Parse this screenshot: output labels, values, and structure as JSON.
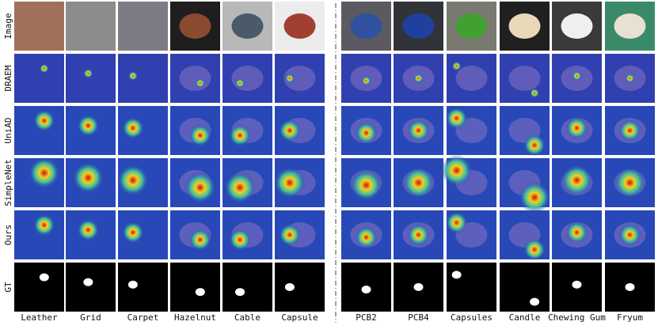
{
  "figure": {
    "row_labels": [
      "Image",
      "DRAEM",
      "UniAD",
      "SimpleNet",
      "Ours",
      "GT"
    ],
    "column_labels": [
      "Leather",
      "Grid",
      "Carpet",
      "Hazelnut",
      "Cable",
      "Capsule",
      "PCB2",
      "PCB4",
      "Capsules",
      "Candle",
      "Chewing Gum",
      "Fryum"
    ]
  }
}
